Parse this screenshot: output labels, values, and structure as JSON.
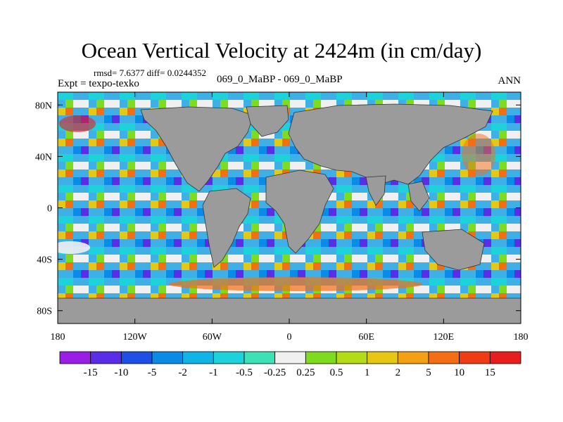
{
  "chart_data": {
    "type": "heatmap",
    "title": "Ocean Vertical Velocity at 2424m (in cm/day)",
    "stats_line": "rmsd= 7.6377 diff= 0.0244352",
    "left_label": "Expt = texpo-texko",
    "center_label": "069_0_MaBP - 069_0_MaBP",
    "right_label": "ANN",
    "projection": "cylindrical equidistant",
    "x_range": [
      -180,
      180
    ],
    "y_range": [
      -90,
      90
    ],
    "x_ticks": [
      {
        "value": -180,
        "label": "180"
      },
      {
        "value": -120,
        "label": "120W"
      },
      {
        "value": -60,
        "label": "60W"
      },
      {
        "value": 0,
        "label": "0"
      },
      {
        "value": 60,
        "label": "60E"
      },
      {
        "value": 120,
        "label": "120E"
      },
      {
        "value": 180,
        "label": "180"
      }
    ],
    "y_ticks": [
      {
        "value": 80,
        "label": "80N"
      },
      {
        "value": 40,
        "label": "40N"
      },
      {
        "value": 0,
        "label": "0"
      },
      {
        "value": -40,
        "label": "40S"
      },
      {
        "value": -80,
        "label": "80S"
      }
    ],
    "land_color": "#9b9b9b",
    "colorbar": {
      "levels": [
        "-15",
        "-10",
        "-5",
        "-2",
        "-1",
        "-0.5",
        "-0.25",
        "0.25",
        "0.5",
        "1",
        "2",
        "5",
        "10",
        "15"
      ],
      "colors": [
        "#9b1ee6",
        "#5a2ee6",
        "#1e50e6",
        "#0a8ce6",
        "#10b4e6",
        "#1ed2dc",
        "#3ce1b4",
        "#f0f0f0",
        "#7edc1e",
        "#b4dc14",
        "#e6c814",
        "#f5a014",
        "#f56e14",
        "#f03c14",
        "#e61e1e"
      ]
    }
  }
}
